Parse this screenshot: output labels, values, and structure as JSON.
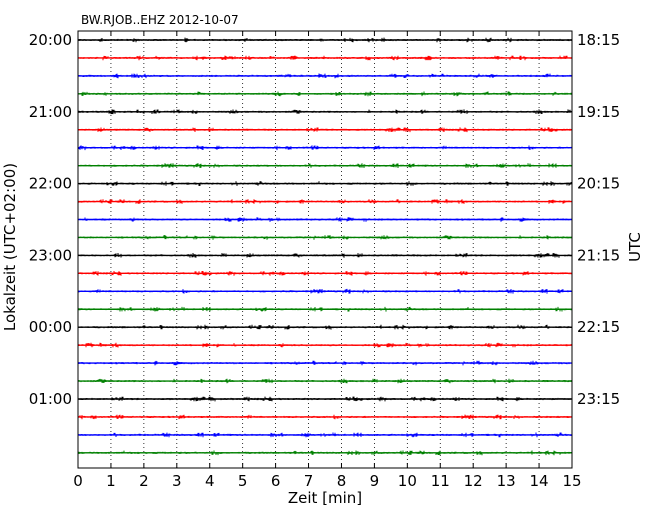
{
  "chart_data": {
    "type": "line",
    "title": "BW.RJOB..EHZ 2012-10-07",
    "xlabel": "Zeit  [min]",
    "ylabel_left": "Lokalzeit (UTC+02:00)",
    "ylabel_right": "UTC",
    "xlim": [
      0,
      15
    ],
    "x_ticks": [
      "0",
      "1",
      "2",
      "3",
      "4",
      "5",
      "6",
      "7",
      "8",
      "9",
      "10",
      "11",
      "12",
      "13",
      "14",
      "15"
    ],
    "traces_count": 24,
    "trace_interval_minutes": 15,
    "left_tick_labels": [
      "20:00",
      "21:00",
      "22:00",
      "23:00",
      "00:00",
      "01:00"
    ],
    "right_tick_labels": [
      "18:15",
      "19:15",
      "20:15",
      "21:15",
      "22:15",
      "23:15"
    ],
    "colors": [
      "#000000",
      "#ff0000",
      "#0000ff",
      "#008000"
    ],
    "grid": "vertical dotted"
  }
}
